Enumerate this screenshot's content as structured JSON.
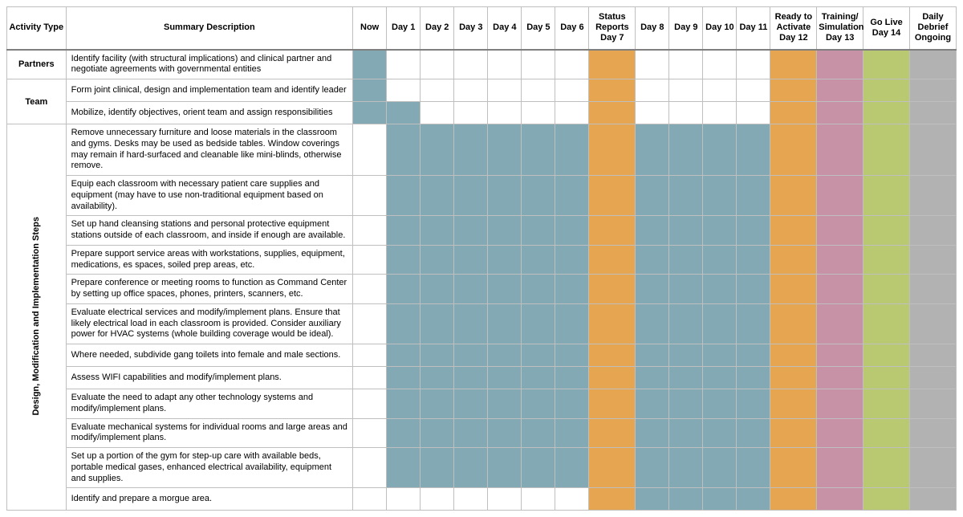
{
  "colors": {
    "blue": "#83a9b5",
    "orange": "#e6a550",
    "pink": "#c792a6",
    "green": "#b8c971",
    "grey": "#b2b2b2",
    "empty": "#ffffff"
  },
  "headers": [
    "Activity Type",
    "Summary Description",
    "Now",
    "Day 1",
    "Day 2",
    "Day 3",
    "Day 4",
    "Day 5",
    "Day 6",
    "Status Reports Day 7",
    "Day 8",
    "Day 9",
    "Day 10",
    "Day 11",
    "Ready to Activate Day 12",
    "Training/ Simulation Day 13",
    "Go Live Day 14",
    "Daily Debrief Ongoing"
  ],
  "groups": [
    {
      "label": "Partners",
      "rotated": false,
      "rows": [
        {
          "desc": "Identify facility (with structural implications) and clinical partner and negotiate agreements with governmental entities",
          "cells": [
            "blue",
            "",
            "",
            "",
            "",
            "",
            "",
            "orange",
            "",
            "",
            "",
            "",
            "orange",
            "pink",
            "green",
            "grey"
          ]
        }
      ]
    },
    {
      "label": "Team",
      "rotated": false,
      "rows": [
        {
          "desc": "Form joint clinical, design and implementation team and identify leader",
          "cells": [
            "blue",
            "",
            "",
            "",
            "",
            "",
            "",
            "orange",
            "",
            "",
            "",
            "",
            "orange",
            "pink",
            "green",
            "grey"
          ]
        },
        {
          "desc": "Mobilize, identify objectives, orient team and assign responsibilities",
          "cells": [
            "blue",
            "blue",
            "",
            "",
            "",
            "",
            "",
            "orange",
            "",
            "",
            "",
            "",
            "orange",
            "pink",
            "green",
            "grey"
          ]
        }
      ]
    },
    {
      "label": "Design, Modification and Implementation Steps",
      "rotated": true,
      "rows": [
        {
          "desc": "Remove unnecessary furniture and loose materials in the classroom and gyms. Desks may be used as bedside tables. Window coverings may remain if hard-surfaced and cleanable like mini-blinds, otherwise remove.",
          "cells": [
            "",
            "blue",
            "blue",
            "blue",
            "blue",
            "blue",
            "blue",
            "orange",
            "blue",
            "blue",
            "blue",
            "blue",
            "orange",
            "pink",
            "green",
            "grey"
          ]
        },
        {
          "desc": "Equip each classroom with necessary patient care supplies and equipment (may have to use non-traditional equipment based on availability).",
          "cells": [
            "",
            "blue",
            "blue",
            "blue",
            "blue",
            "blue",
            "blue",
            "orange",
            "blue",
            "blue",
            "blue",
            "blue",
            "orange",
            "pink",
            "green",
            "grey"
          ]
        },
        {
          "desc": "Set up hand cleansing stations and personal protective equipment stations outside of each classroom, and inside if enough are available.",
          "cells": [
            "",
            "blue",
            "blue",
            "blue",
            "blue",
            "blue",
            "blue",
            "orange",
            "blue",
            "blue",
            "blue",
            "blue",
            "orange",
            "pink",
            "green",
            "grey"
          ]
        },
        {
          "desc": "Prepare support service areas with workstations, supplies, equipment, medications, es spaces, soiled prep areas, etc.",
          "cells": [
            "",
            "blue",
            "blue",
            "blue",
            "blue",
            "blue",
            "blue",
            "orange",
            "blue",
            "blue",
            "blue",
            "blue",
            "orange",
            "pink",
            "green",
            "grey"
          ]
        },
        {
          "desc": "Prepare conference or meeting rooms to function as Command Center by setting up office spaces, phones, printers, scanners, etc.",
          "cells": [
            "",
            "blue",
            "blue",
            "blue",
            "blue",
            "blue",
            "blue",
            "orange",
            "blue",
            "blue",
            "blue",
            "blue",
            "orange",
            "pink",
            "green",
            "grey"
          ]
        },
        {
          "desc": "Evaluate electrical services and modify/implement plans. Ensure that likely electrical load in each classroom is provided. Consider auxiliary power for HVAC systems (whole building coverage would be ideal).",
          "cells": [
            "",
            "blue",
            "blue",
            "blue",
            "blue",
            "blue",
            "blue",
            "orange",
            "blue",
            "blue",
            "blue",
            "blue",
            "orange",
            "pink",
            "green",
            "grey"
          ]
        },
        {
          "desc": "Where needed, subdivide gang toilets into female and male sections.",
          "cells": [
            "",
            "blue",
            "blue",
            "blue",
            "blue",
            "blue",
            "blue",
            "orange",
            "blue",
            "blue",
            "blue",
            "blue",
            "orange",
            "pink",
            "green",
            "grey"
          ]
        },
        {
          "desc": "Assess WIFI capabilities and modify/implement plans.",
          "cells": [
            "",
            "blue",
            "blue",
            "blue",
            "blue",
            "blue",
            "blue",
            "orange",
            "blue",
            "blue",
            "blue",
            "blue",
            "orange",
            "pink",
            "green",
            "grey"
          ]
        },
        {
          "desc": "Evaluate the need to adapt any other technology systems and modify/implement plans.",
          "cells": [
            "",
            "blue",
            "blue",
            "blue",
            "blue",
            "blue",
            "blue",
            "orange",
            "blue",
            "blue",
            "blue",
            "blue",
            "orange",
            "pink",
            "green",
            "grey"
          ]
        },
        {
          "desc": "Evaluate mechanical systems for individual rooms and large areas and modify/implement plans.",
          "cells": [
            "",
            "blue",
            "blue",
            "blue",
            "blue",
            "blue",
            "blue",
            "orange",
            "blue",
            "blue",
            "blue",
            "blue",
            "orange",
            "pink",
            "green",
            "grey"
          ]
        },
        {
          "desc": "Set up a portion of the gym for step-up care  with available beds, portable medical gases, enhanced electrical availability, equipment and supplies.",
          "cells": [
            "",
            "blue",
            "blue",
            "blue",
            "blue",
            "blue",
            "blue",
            "orange",
            "blue",
            "blue",
            "blue",
            "blue",
            "orange",
            "pink",
            "green",
            "grey"
          ]
        },
        {
          "desc": "Identify and prepare a morgue area.",
          "cells": [
            "",
            "",
            "",
            "",
            "",
            "",
            "",
            "orange",
            "blue",
            "blue",
            "blue",
            "blue",
            "orange",
            "pink",
            "green",
            "grey"
          ]
        }
      ]
    }
  ]
}
